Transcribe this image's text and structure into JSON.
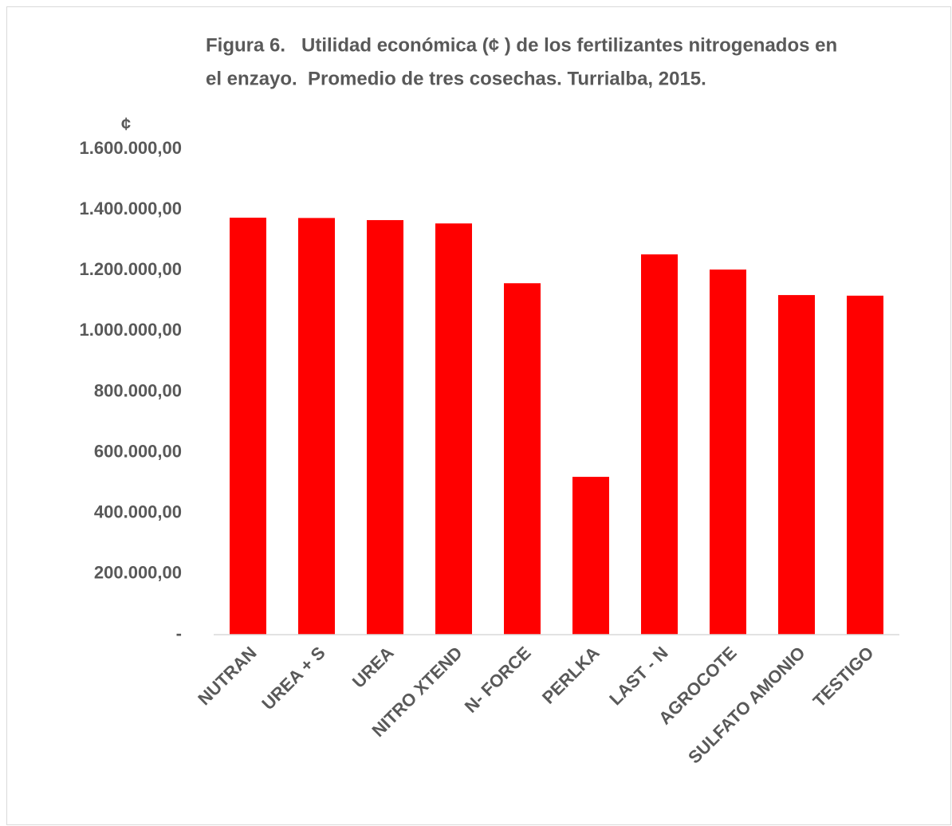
{
  "chart_data": {
    "type": "bar",
    "title": [
      "Figura 6.   Utilidad económica (¢ ) de los fertilizantes nitrogenados en",
      "el enzayo.  Promedio de tres cosechas. Turrialba, 2015."
    ],
    "y_label": "¢",
    "categories": [
      "NUTRAN",
      "UREA + S",
      "UREA",
      "NITRO XTEND",
      "N- FORCE",
      "PERLKA",
      "LAST - N",
      "AGROCOTE",
      "SULFATO AMONIO",
      "TESTIGO"
    ],
    "values": [
      1374000,
      1373000,
      1366000,
      1355000,
      1158000,
      520000,
      1253000,
      1203000,
      1119000,
      1117000
    ],
    "color": "#ff0000",
    "ylim": [
      0,
      1600000
    ],
    "yticks": [
      {
        "value": 0,
        "label": "-"
      },
      {
        "value": 200000,
        "label": "200.000,00"
      },
      {
        "value": 400000,
        "label": "400.000,00"
      },
      {
        "value": 600000,
        "label": "600.000,00"
      },
      {
        "value": 800000,
        "label": "800.000,00"
      },
      {
        "value": 1000000,
        "label": "1.000.000,00"
      },
      {
        "value": 1200000,
        "label": "1.200.000,00"
      },
      {
        "value": 1400000,
        "label": "1.400.000,00"
      },
      {
        "value": 1600000,
        "label": "1.600.000,00"
      }
    ],
    "grid": false
  }
}
